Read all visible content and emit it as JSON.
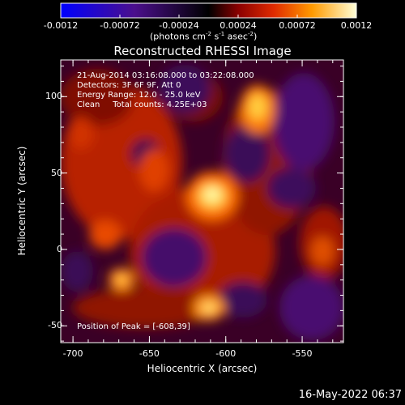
{
  "colorbar": {
    "tick_labels": [
      "-0.0012",
      "-0.00072",
      "-0.00024",
      "0.00024",
      "0.00072",
      "0.0012"
    ],
    "tick_values": [
      -0.0012,
      -0.00072,
      -0.00024,
      0.00024,
      0.00072,
      0.0012
    ],
    "range": [
      -0.0012,
      0.0012
    ],
    "units_label": "(photons cm",
    "units_exp1": "-2",
    "units_mid": " s",
    "units_exp2": "-1",
    "units_end": " asec",
    "units_exp3": "-2",
    "units_close": ")"
  },
  "image": {
    "title": "Reconstructed RHESSI Image",
    "info_lines": [
      "21-Aug-2014 03:16:08.000 to 03:22:08.000",
      "Detectors: 3F 6F 9F, Att 0",
      "Energy Range: 12.0 - 25.0 keV",
      "Clean     Total counts: 4.25E+03"
    ],
    "peak_label": "Position of Peak = [-608,39]",
    "xlabel": "Heliocentric X (arcsec)",
    "ylabel": "Heliocentric Y (arcsec)",
    "x_ticks": [
      "-700",
      "-650",
      "-600",
      "-550"
    ],
    "x_tick_values": [
      -700,
      -650,
      -600,
      -550
    ],
    "y_ticks": [
      "-50",
      "0",
      "50",
      "100"
    ],
    "y_tick_values": [
      -50,
      0,
      50,
      100
    ],
    "xlim": [
      -708,
      -523
    ],
    "ylim": [
      -61,
      124
    ],
    "peak_position": [
      -608,
      39
    ],
    "colormap": "black-purple-red-orange-yellow-white"
  },
  "footer": {
    "timestamp": "16-May-2022 06:37"
  },
  "colors": {
    "background": "#000000",
    "foreground": "#ffffff"
  }
}
